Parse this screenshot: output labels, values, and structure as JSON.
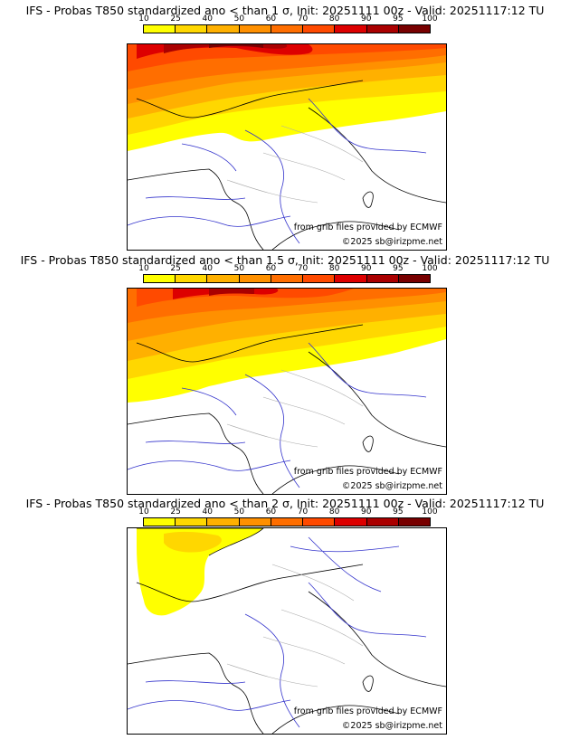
{
  "legend": {
    "labels": [
      "10",
      "25",
      "40",
      "50",
      "60",
      "70",
      "80",
      "90",
      "95",
      "100"
    ],
    "colors": [
      "#ffff00",
      "#ffd700",
      "#ffb000",
      "#ff9000",
      "#ff6e00",
      "#ff4a00",
      "#dd0000",
      "#aa0000",
      "#780000"
    ]
  },
  "panels": [
    {
      "title": "IFS - Probas T850  standardized ano < than 1 σ, Init: 20251111 00z - Valid: 20251117:12 TU",
      "source": "from grib files provided by ECMWF",
      "copyright": "©2025 sb@irizpme.net"
    },
    {
      "title": "IFS - Probas T850  standardized ano < than 1.5 σ, Init: 20251111 00z - Valid: 20251117:12 TU",
      "source": "from grib files provided by ECMWF",
      "copyright": "©2025 sb@irizpme.net"
    },
    {
      "title": "IFS - Probas T850  standardized ano < than 2 σ, Init: 20251111 00z - Valid: 20251117:12 TU",
      "source": "from grib files provided by ECMWF",
      "copyright": "©2025 sb@irizpme.net"
    }
  ]
}
